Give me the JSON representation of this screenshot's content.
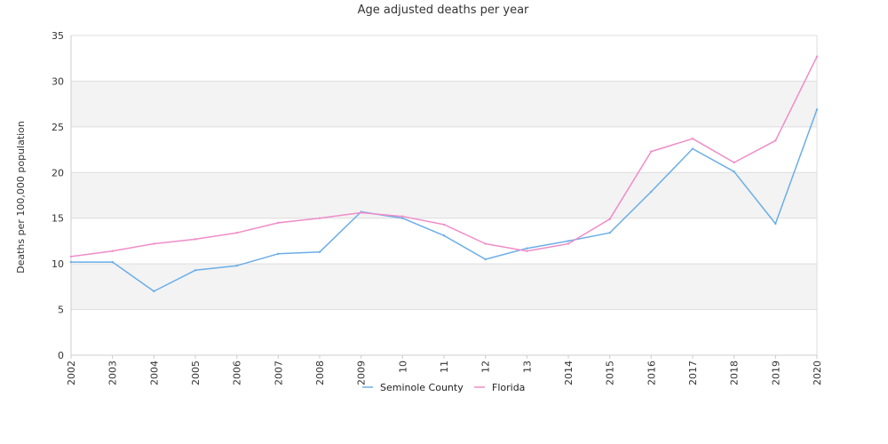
{
  "chart_data": {
    "type": "line",
    "title": "Age adjusted deaths per year",
    "xlabel": "",
    "ylabel": "Deaths per 100,000 population",
    "ylim": [
      0,
      35
    ],
    "y_ticks": [
      0,
      5,
      10,
      15,
      20,
      25,
      30,
      35
    ],
    "categories": [
      "2002",
      "2003",
      "2004",
      "2005",
      "2006",
      "2007",
      "2008",
      "2009",
      "10",
      "11",
      "12",
      "13",
      "2014",
      "2015",
      "2016",
      "2017",
      "2018",
      "2019",
      "2020"
    ],
    "grid": true,
    "legend_position": "bottom",
    "band_colors": [
      "#ffffff",
      "#f3f3f3"
    ],
    "series": [
      {
        "name": "Seminole County",
        "color": "#6aaee8",
        "values": [
          10.2,
          10.2,
          7.0,
          9.3,
          9.8,
          11.1,
          11.3,
          15.7,
          15.0,
          13.1,
          10.5,
          11.7,
          12.5,
          13.4,
          17.9,
          22.6,
          20.1,
          14.4,
          26.9
        ]
      },
      {
        "name": "Florida",
        "color": "#f08cc8",
        "values": [
          10.8,
          11.4,
          12.2,
          12.7,
          13.4,
          14.5,
          15.0,
          15.6,
          15.2,
          14.3,
          12.2,
          11.4,
          12.2,
          14.9,
          22.3,
          23.7,
          21.1,
          23.5,
          32.7
        ]
      }
    ]
  }
}
